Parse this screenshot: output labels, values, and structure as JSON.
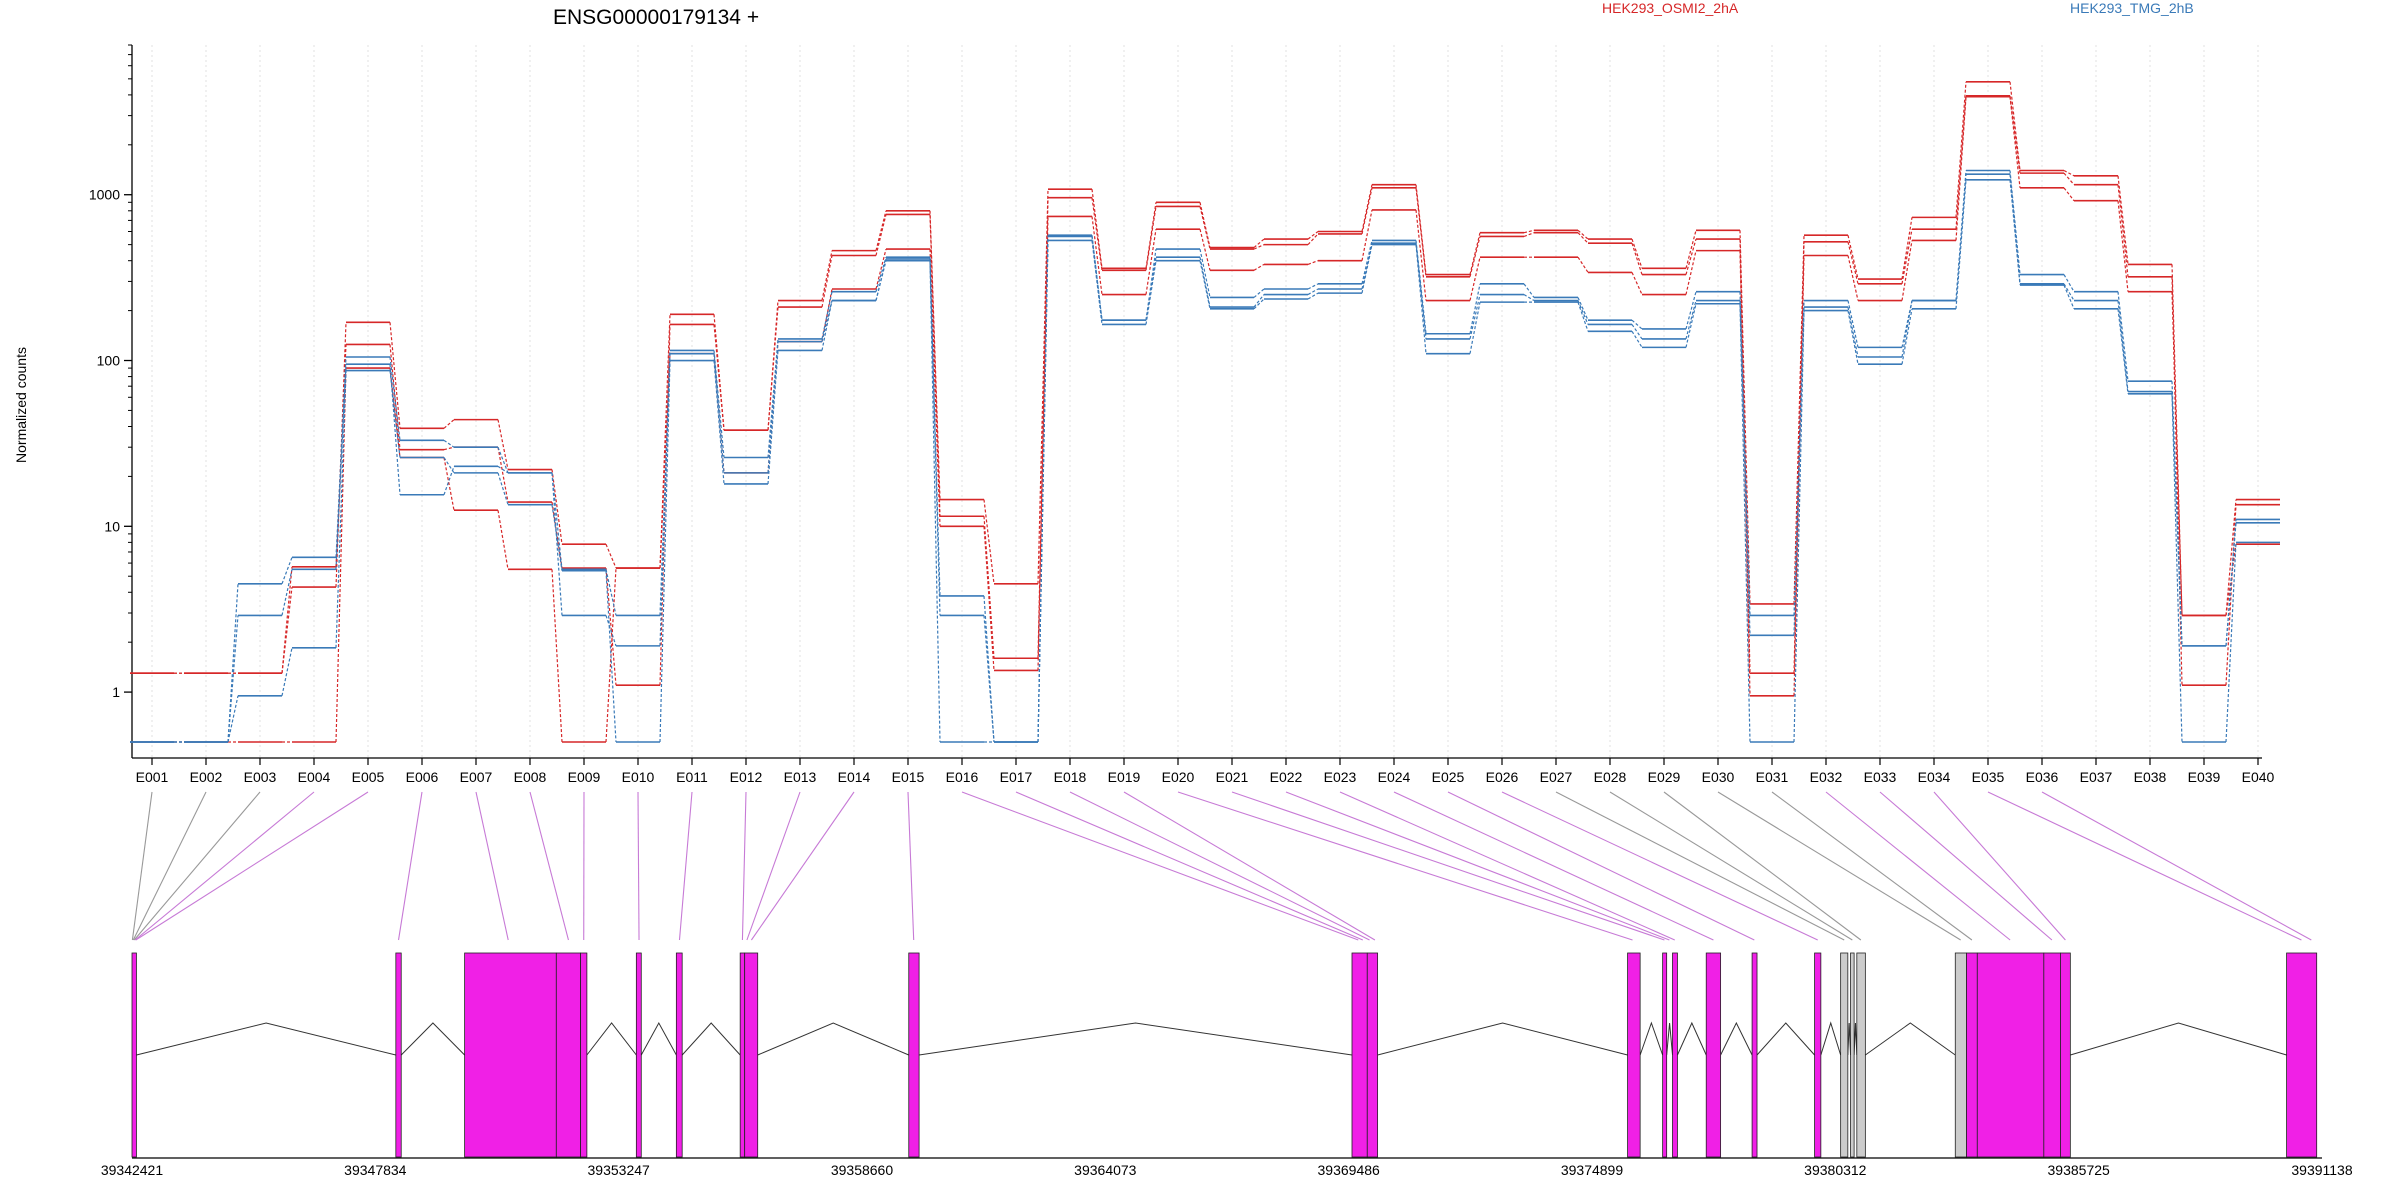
{
  "chart_data": {
    "type": "line",
    "title": "ENSG00000179134 +",
    "ylabel": "Normalized counts",
    "y_scale": "log",
    "ylim": [
      0.5,
      8000
    ],
    "y_ticks": [
      1,
      10,
      100,
      1000
    ],
    "y_tick_labels": [
      "1",
      "10",
      "100",
      "1000"
    ],
    "grid": "vertical dotted lines at each exon bin",
    "legend": [
      {
        "label": "HEK293_OSMI2_2hA",
        "color": "#d62728"
      },
      {
        "label": "HEK293_TMG_2hB",
        "color": "#3a7ab8"
      }
    ],
    "categories": [
      "E001",
      "E002",
      "E003",
      "E004",
      "E005",
      "E006",
      "E007",
      "E008",
      "E009",
      "E010",
      "E011",
      "E012",
      "E013",
      "E014",
      "E015",
      "E016",
      "E017",
      "E018",
      "E019",
      "E020",
      "E021",
      "E022",
      "E023",
      "E024",
      "E025",
      "E026",
      "E027",
      "E028",
      "E029",
      "E030",
      "E031",
      "E032",
      "E033",
      "E034",
      "E035",
      "E036",
      "E037",
      "E038",
      "E039",
      "E040"
    ],
    "series": [
      {
        "group": "HEK293_OSMI2_2hA",
        "color": "#d62728",
        "values": [
          1.3,
          1.3,
          1.3,
          4.3,
          170,
          39,
          44,
          22,
          7.8,
          5.6,
          190,
          38,
          230,
          460,
          800,
          14.5,
          4.5,
          1080,
          360,
          900,
          480,
          540,
          600,
          1150,
          330,
          590,
          610,
          540,
          360,
          610,
          3.4,
          570,
          310,
          730,
          4800,
          1400,
          1300,
          380,
          2.9,
          14.5
        ]
      },
      {
        "group": "HEK293_OSMI2_2hA",
        "color": "#d62728",
        "values": [
          1.3,
          1.3,
          1.3,
          5.7,
          125,
          29,
          30,
          14,
          5.6,
          1.1,
          165,
          38,
          210,
          430,
          760,
          11.5,
          1.6,
          960,
          350,
          850,
          470,
          500,
          580,
          1100,
          320,
          560,
          590,
          510,
          330,
          540,
          1.3,
          520,
          290,
          620,
          3950,
          1350,
          1150,
          320,
          1.1,
          13.5
        ]
      },
      {
        "group": "HEK293_OSMI2_2hA",
        "color": "#d62728",
        "values": [
          0.5,
          0.5,
          0.5,
          0.5,
          90,
          26,
          12.5,
          5.5,
          0.5,
          5.6,
          110,
          21,
          130,
          270,
          470,
          10,
          1.35,
          740,
          250,
          620,
          350,
          380,
          400,
          810,
          230,
          420,
          420,
          340,
          250,
          460,
          0.95,
          430,
          230,
          530,
          3900,
          1100,
          920,
          260,
          2.9,
          7.8
        ]
      },
      {
        "group": "HEK293_TMG_2hB",
        "color": "#3a7ab8",
        "values": [
          0.5,
          0.5,
          4.5,
          6.5,
          105,
          33,
          30,
          21,
          5.5,
          2.9,
          115,
          26,
          135,
          260,
          420,
          3.8,
          0.5,
          570,
          175,
          470,
          240,
          270,
          290,
          530,
          145,
          290,
          240,
          175,
          155,
          260,
          2.9,
          230,
          120,
          230,
          1400,
          330,
          260,
          75,
          1.9,
          11
        ]
      },
      {
        "group": "HEK293_TMG_2hB",
        "color": "#3a7ab8",
        "values": [
          0.5,
          0.5,
          2.9,
          5.5,
          95,
          15.5,
          23,
          21,
          2.9,
          1.9,
          110,
          21,
          130,
          230,
          410,
          2.9,
          0.5,
          560,
          175,
          420,
          210,
          250,
          270,
          510,
          135,
          250,
          230,
          165,
          135,
          230,
          2.2,
          210,
          105,
          230,
          1330,
          290,
          230,
          65,
          1.9,
          10.5
        ]
      },
      {
        "group": "HEK293_TMG_2hB",
        "color": "#3a7ab8",
        "values": [
          0.5,
          0.5,
          0.95,
          1.85,
          87,
          26,
          21,
          13.5,
          5.4,
          0.5,
          100,
          18,
          115,
          230,
          400,
          0.5,
          0.5,
          530,
          165,
          400,
          205,
          235,
          255,
          500,
          110,
          225,
          225,
          150,
          120,
          220,
          0.5,
          200,
          95,
          205,
          1230,
          285,
          205,
          63,
          0.5,
          8
        ]
      }
    ],
    "genomic_axis": {
      "tick_labels": [
        "39342421",
        "39347834",
        "39353247",
        "39358660",
        "39364073",
        "39369486",
        "39374899",
        "39380312",
        "39385725",
        "39391138"
      ],
      "tick_values": [
        39342421,
        39347834,
        39353247,
        39358660,
        39364073,
        39369486,
        39374899,
        39380312,
        39385725,
        39391138
      ],
      "range": [
        39342421,
        39391138
      ]
    },
    "exon_colors": {
      "differential": "#f020e6",
      "not_tested": "#cccccc"
    },
    "exon_blocks": [
      {
        "start": 39342421,
        "end": 39342520,
        "color": "#f020e6"
      },
      {
        "start": 39348290,
        "end": 39348410,
        "color": "#f020e6"
      },
      {
        "start": 39349820,
        "end": 39351860,
        "color": "#f020e6"
      },
      {
        "start": 39351860,
        "end": 39352400,
        "color": "#f020e6"
      },
      {
        "start": 39352400,
        "end": 39352540,
        "color": "#f020e6"
      },
      {
        "start": 39353640,
        "end": 39353750,
        "color": "#f020e6"
      },
      {
        "start": 39354530,
        "end": 39354660,
        "color": "#f020e6"
      },
      {
        "start": 39355950,
        "end": 39356050,
        "color": "#f020e6"
      },
      {
        "start": 39356050,
        "end": 39356340,
        "color": "#f020e6"
      },
      {
        "start": 39359700,
        "end": 39359930,
        "color": "#f020e6"
      },
      {
        "start": 39369560,
        "end": 39369900,
        "color": "#f020e6"
      },
      {
        "start": 39369900,
        "end": 39370130,
        "color": "#f020e6"
      },
      {
        "start": 39375690,
        "end": 39375970,
        "color": "#f020e6"
      },
      {
        "start": 39376470,
        "end": 39376560,
        "color": "#f020e6"
      },
      {
        "start": 39376690,
        "end": 39376800,
        "color": "#f020e6"
      },
      {
        "start": 39377440,
        "end": 39377760,
        "color": "#f020e6"
      },
      {
        "start": 39378460,
        "end": 39378570,
        "color": "#f020e6"
      },
      {
        "start": 39379850,
        "end": 39379990,
        "color": "#f020e6"
      },
      {
        "start": 39380430,
        "end": 39380590,
        "color": "#cccccc"
      },
      {
        "start": 39380650,
        "end": 39380730,
        "color": "#cccccc"
      },
      {
        "start": 39380790,
        "end": 39380980,
        "color": "#cccccc"
      },
      {
        "start": 39382980,
        "end": 39383230,
        "color": "#cccccc"
      },
      {
        "start": 39383230,
        "end": 39383470,
        "color": "#f020e6"
      },
      {
        "start": 39383470,
        "end": 39384950,
        "color": "#f020e6"
      },
      {
        "start": 39384950,
        "end": 39385320,
        "color": "#f020e6"
      },
      {
        "start": 39385320,
        "end": 39385540,
        "color": "#f020e6"
      },
      {
        "start": 39390350,
        "end": 39391020,
        "color": "#f020e6"
      }
    ],
    "introns": [
      [
        39342520,
        39348290
      ],
      [
        39348410,
        39349820
      ],
      [
        39352540,
        39353640
      ],
      [
        39353750,
        39354530
      ],
      [
        39354660,
        39355950
      ],
      [
        39356340,
        39359700
      ],
      [
        39359930,
        39369560
      ],
      [
        39370130,
        39375690
      ],
      [
        39375970,
        39376470
      ],
      [
        39376560,
        39376690
      ],
      [
        39376800,
        39377440
      ],
      [
        39377760,
        39378460
      ],
      [
        39378570,
        39379850
      ],
      [
        39379990,
        39380430
      ],
      [
        39380590,
        39380650
      ],
      [
        39380730,
        39380790
      ],
      [
        39380980,
        39382980
      ],
      [
        39385540,
        39390350
      ]
    ],
    "bin_links": [
      {
        "bin": 0,
        "pos": 39342430,
        "color": "#999999"
      },
      {
        "bin": 1,
        "pos": 39342450,
        "color": "#999999"
      },
      {
        "bin": 2,
        "pos": 39342470,
        "color": "#999999"
      },
      {
        "bin": 3,
        "pos": 39342490,
        "color": "#c77ad6"
      },
      {
        "bin": 4,
        "pos": 39342505,
        "color": "#c77ad6"
      },
      {
        "bin": 5,
        "pos": 39348350,
        "color": "#c77ad6"
      },
      {
        "bin": 6,
        "pos": 39350790,
        "color": "#c77ad6"
      },
      {
        "bin": 7,
        "pos": 39352130,
        "color": "#c77ad6"
      },
      {
        "bin": 8,
        "pos": 39352470,
        "color": "#c77ad6"
      },
      {
        "bin": 9,
        "pos": 39353700,
        "color": "#c77ad6"
      },
      {
        "bin": 10,
        "pos": 39354600,
        "color": "#c77ad6"
      },
      {
        "bin": 11,
        "pos": 39356000,
        "color": "#c77ad6"
      },
      {
        "bin": 12,
        "pos": 39356100,
        "color": "#c77ad6"
      },
      {
        "bin": 13,
        "pos": 39356200,
        "color": "#c77ad6"
      },
      {
        "bin": 14,
        "pos": 39359810,
        "color": "#c77ad6"
      },
      {
        "bin": 15,
        "pos": 39369700,
        "color": "#c77ad6"
      },
      {
        "bin": 16,
        "pos": 39369800,
        "color": "#c77ad6"
      },
      {
        "bin": 17,
        "pos": 39369950,
        "color": "#c77ad6"
      },
      {
        "bin": 18,
        "pos": 39370070,
        "color": "#c77ad6"
      },
      {
        "bin": 19,
        "pos": 39375800,
        "color": "#c77ad6"
      },
      {
        "bin": 20,
        "pos": 39376510,
        "color": "#c77ad6"
      },
      {
        "bin": 21,
        "pos": 39376620,
        "color": "#c77ad6"
      },
      {
        "bin": 22,
        "pos": 39376740,
        "color": "#c77ad6"
      },
      {
        "bin": 23,
        "pos": 39377600,
        "color": "#c77ad6"
      },
      {
        "bin": 24,
        "pos": 39378510,
        "color": "#c77ad6"
      },
      {
        "bin": 25,
        "pos": 39379920,
        "color": "#c77ad6"
      },
      {
        "bin": 26,
        "pos": 39380510,
        "color": "#999999"
      },
      {
        "bin": 27,
        "pos": 39380690,
        "color": "#999999"
      },
      {
        "bin": 28,
        "pos": 39380880,
        "color": "#999999"
      },
      {
        "bin": 29,
        "pos": 39383100,
        "color": "#999999"
      },
      {
        "bin": 30,
        "pos": 39383350,
        "color": "#999999"
      },
      {
        "bin": 31,
        "pos": 39384200,
        "color": "#c77ad6"
      },
      {
        "bin": 32,
        "pos": 39385130,
        "color": "#c77ad6"
      },
      {
        "bin": 33,
        "pos": 39385430,
        "color": "#c77ad6"
      },
      {
        "bin": 34,
        "pos": 39390680,
        "color": "#c77ad6"
      },
      {
        "bin": 35,
        "pos": 39390900,
        "color": "#c77ad6"
      }
    ]
  }
}
